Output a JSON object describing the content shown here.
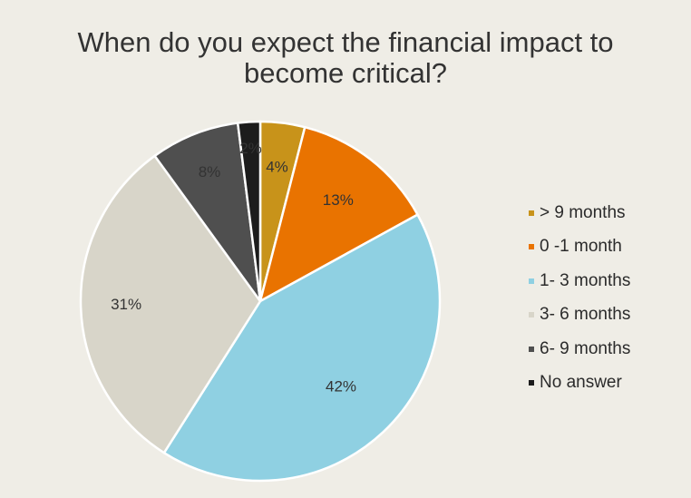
{
  "title_lines": [
    "When do you expect the financial impact to",
    "become critical?"
  ],
  "chart_data": {
    "type": "pie",
    "title": "When do you expect the financial impact to become critical?",
    "start_angle_deg": 0,
    "direction": "clockwise",
    "legend_position": "right",
    "slices": [
      {
        "label": "> 9 months",
        "value": 4,
        "value_label": "4%",
        "color": "#c8931a"
      },
      {
        "label": "0 -1 month",
        "value": 13,
        "value_label": "13%",
        "color": "#e97300"
      },
      {
        "label": "1- 3 months",
        "value": 42,
        "value_label": "42%",
        "color": "#8fd0e2"
      },
      {
        "label": "3- 6 months",
        "value": 31,
        "value_label": "31%",
        "color": "#d8d5c9"
      },
      {
        "label": "6- 9 months",
        "value": 8,
        "value_label": "8%",
        "color": "#4f4f4f"
      },
      {
        "label": "No answer",
        "value": 2,
        "value_label": "2%",
        "color": "#1c1c1c"
      }
    ]
  }
}
